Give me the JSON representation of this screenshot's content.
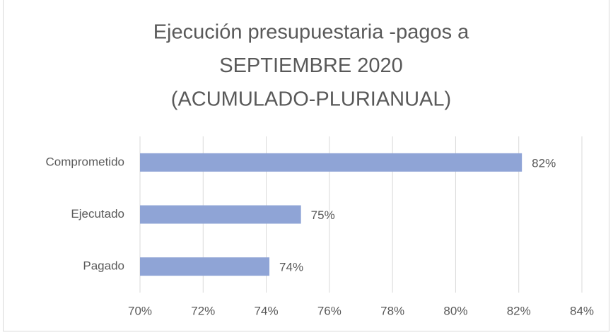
{
  "chart_data": {
    "type": "barh",
    "title": [
      "Ejecución presupuestaria -pagos a",
      "SEPTIEMBRE 2020",
      "(ACUMULADO-PLURIANUAL)"
    ],
    "categories": [
      "Comprometido",
      "Ejecutado",
      "Pagado"
    ],
    "values": [
      82.1,
      75.1,
      74.1
    ],
    "value_labels": [
      "82%",
      "75%",
      "74%"
    ],
    "color": "#8fa4d6",
    "xlim": [
      70,
      84
    ],
    "xticks": [
      {
        "value": 70,
        "label": "70%"
      },
      {
        "value": 72,
        "label": "72%"
      },
      {
        "value": 74,
        "label": "74%"
      },
      {
        "value": 76,
        "label": "76%"
      },
      {
        "value": 78,
        "label": "78%"
      },
      {
        "value": 80,
        "label": "80%"
      },
      {
        "value": 82,
        "label": "82%"
      },
      {
        "value": 84,
        "label": "84%"
      }
    ],
    "grid": true
  }
}
